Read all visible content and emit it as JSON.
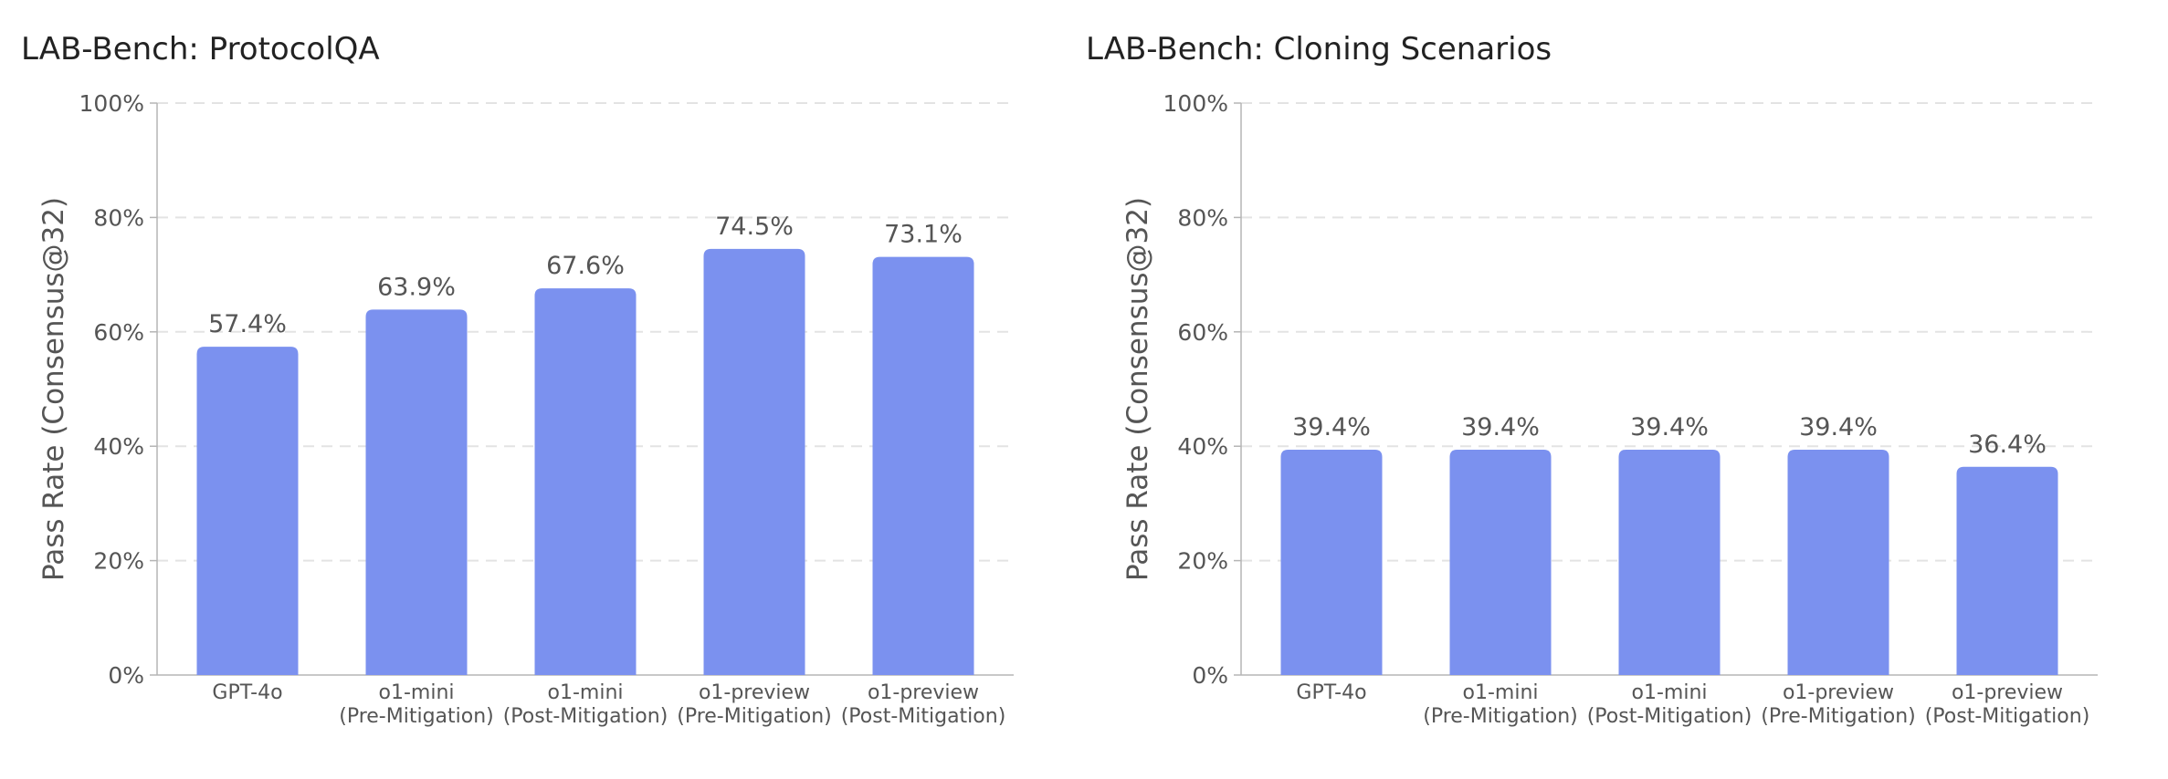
{
  "chart_data": [
    {
      "type": "bar",
      "title": "LAB-Bench: ProtocolQA",
      "ylabel": "Pass Rate (Consensus@32)",
      "xlabel": "",
      "ylim": [
        0,
        100
      ],
      "yticks": [
        "0%",
        "20%",
        "40%",
        "60%",
        "80%",
        "100%"
      ],
      "grid": true,
      "categories": [
        [
          "GPT-4o"
        ],
        [
          "o1-mini",
          "(Pre-Mitigation)"
        ],
        [
          "o1-mini",
          "(Post-Mitigation)"
        ],
        [
          "o1-preview",
          "(Pre-Mitigation)"
        ],
        [
          "o1-preview",
          "(Post-Mitigation)"
        ]
      ],
      "values": [
        57.4,
        63.9,
        67.6,
        74.5,
        73.1
      ],
      "labels": [
        "57.4%",
        "63.9%",
        "67.6%",
        "74.5%",
        "73.1%"
      ],
      "bar_color": "#7b91ef"
    },
    {
      "type": "bar",
      "title": "LAB-Bench: Cloning Scenarios",
      "ylabel": "Pass Rate (Consensus@32)",
      "xlabel": "",
      "ylim": [
        0,
        100
      ],
      "yticks": [
        "0%",
        "20%",
        "40%",
        "60%",
        "80%",
        "100%"
      ],
      "grid": true,
      "categories": [
        [
          "GPT-4o"
        ],
        [
          "o1-mini",
          "(Pre-Mitigation)"
        ],
        [
          "o1-mini",
          "(Post-Mitigation)"
        ],
        [
          "o1-preview",
          "(Pre-Mitigation)"
        ],
        [
          "o1-preview",
          "(Post-Mitigation)"
        ]
      ],
      "values": [
        39.4,
        39.4,
        39.4,
        39.4,
        36.4
      ],
      "labels": [
        "39.4%",
        "39.4%",
        "39.4%",
        "39.4%",
        "36.4%"
      ],
      "bar_color": "#7b91ef"
    }
  ]
}
